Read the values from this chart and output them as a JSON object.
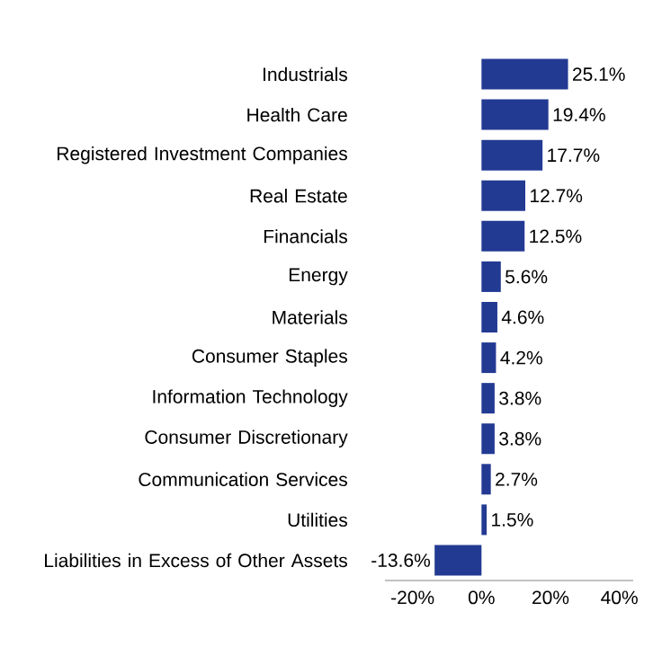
{
  "chart_data": {
    "type": "bar",
    "orientation": "horizontal",
    "color": "#233a93",
    "categories": [
      "Industrials",
      "Health Care",
      "Registered Investment Companies",
      "Real Estate",
      "Financials",
      "Energy",
      "Materials",
      "Consumer Staples",
      "Information Technology",
      "Consumer Discretionary",
      "Communication Services",
      "Utilities",
      "Liabilities in Excess of Other Assets"
    ],
    "values": [
      25.1,
      19.4,
      17.7,
      12.7,
      12.5,
      5.6,
      4.6,
      4.2,
      3.8,
      3.8,
      2.7,
      1.5,
      -13.6
    ],
    "value_labels": [
      "25.1%",
      "19.4%",
      "17.7%",
      "12.7%",
      "12.5%",
      "5.6%",
      "4.6%",
      "4.2%",
      "3.8%",
      "3.8%",
      "2.7%",
      "1.5%",
      "-13.6%"
    ],
    "xlim": [
      -28,
      44
    ],
    "xticks": [
      {
        "value": -20,
        "label": "-20%"
      },
      {
        "value": 0,
        "label": "0%"
      },
      {
        "value": 20,
        "label": "20%"
      },
      {
        "value": 40,
        "label": "40%"
      }
    ]
  }
}
